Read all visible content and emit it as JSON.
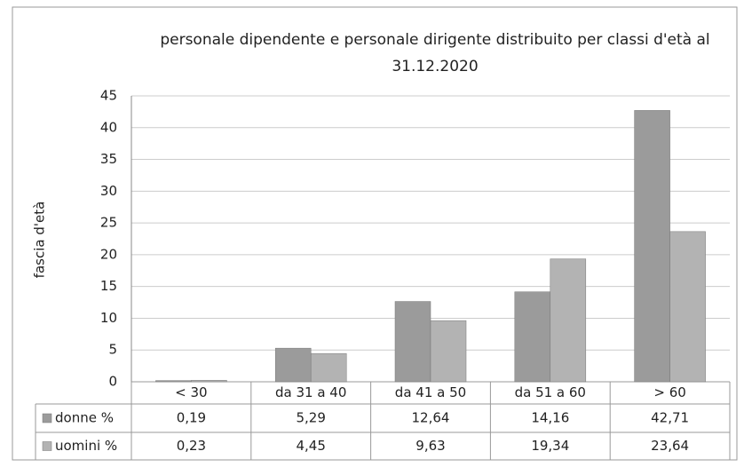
{
  "chart_data": {
    "type": "bar",
    "title": "personale dipendente e personale dirigente distribuito per classi d'età al 31.12.2020",
    "y_axis_label": "fascia d'età",
    "categories": [
      "< 30",
      "da 31 a 40",
      "da 41 a 50",
      "da 51 a 60",
      "> 60"
    ],
    "series": [
      {
        "name": "donne %",
        "color": "#9b9b9b",
        "values": [
          0.19,
          5.29,
          12.64,
          14.16,
          42.71
        ],
        "value_labels": [
          "0,19",
          "5,29",
          "12,64",
          "14,16",
          "42,71"
        ]
      },
      {
        "name": "uomini %",
        "color": "#b3b3b3",
        "values": [
          0.23,
          4.45,
          9.63,
          19.34,
          23.64
        ],
        "value_labels": [
          "0,23",
          "4,45",
          "9,63",
          "19,34",
          "23,64"
        ]
      }
    ],
    "ylim": [
      0,
      45
    ],
    "yticks": [
      0,
      5,
      10,
      15,
      20,
      25,
      30,
      35,
      40,
      45
    ],
    "grid": true
  }
}
